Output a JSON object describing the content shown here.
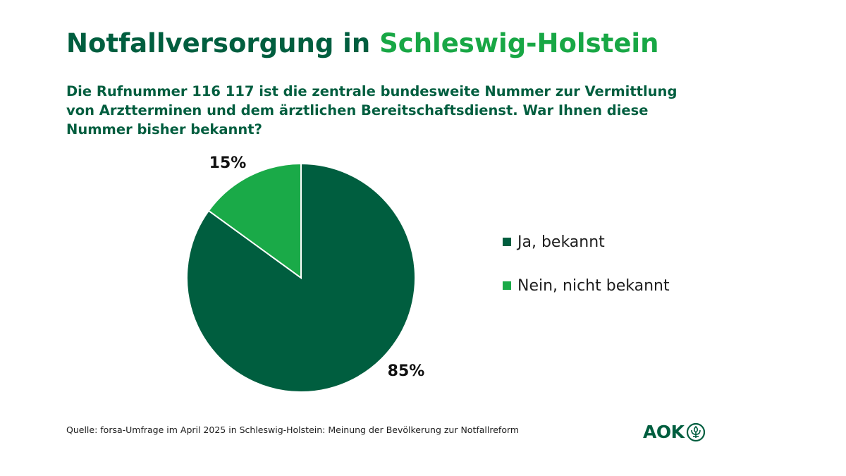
{
  "title": {
    "part_a": "Notfallversorgung in",
    "part_b": "Schleswig-Holstein"
  },
  "question": "Die Rufnummer 116 117 ist die zentrale bundesweite Nummer zur Vermittlung von Arztterminen und dem ärztlichen Bereitschaftsdienst. War Ihnen diese Nummer bisher bekannt?",
  "colors": {
    "dark_green": "#005e3f",
    "light_green": "#1aaa48"
  },
  "chart_data": {
    "type": "pie",
    "title": "",
    "categories": [
      "Ja, bekannt",
      "Nein, nicht bekannt"
    ],
    "values": [
      85,
      15
    ],
    "data_labels": [
      "85%",
      "15%"
    ],
    "colors": [
      "#005e3f",
      "#1aaa48"
    ],
    "legend_position": "right"
  },
  "source": "Quelle: forsa-Umfrage im April 2025 in Schleswig-Holstein: Meinung der Bevölkerung zur Notfallreform",
  "logo": {
    "text": "AOK",
    "icon": "aok-tree-icon"
  }
}
